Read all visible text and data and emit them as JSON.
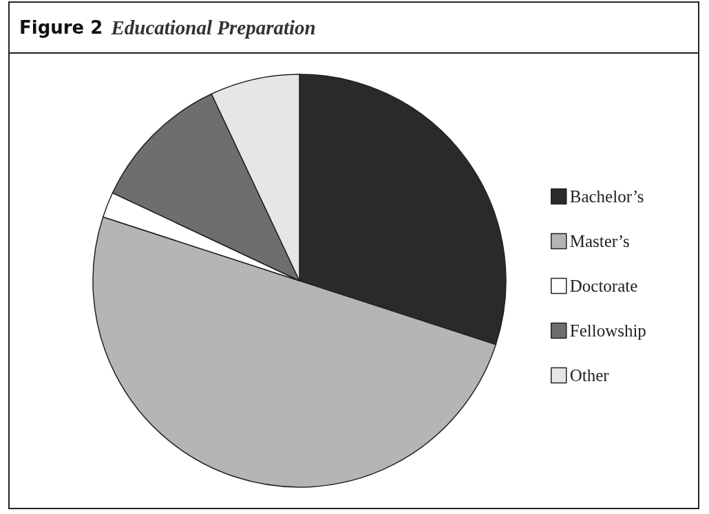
{
  "chart_data": {
    "type": "pie",
    "title": "Figure 2",
    "subtitle": "Educational Preparation",
    "categories": [
      "Bachelor’s",
      "Master’s",
      "Doctorate",
      "Fellowship",
      "Other"
    ],
    "values": [
      30,
      50,
      2,
      11,
      7
    ],
    "colors": [
      "#2a2a2a",
      "#b5b5b5",
      "#ffffff",
      "#6e6e6e",
      "#e6e6e6"
    ],
    "legend": "right"
  }
}
